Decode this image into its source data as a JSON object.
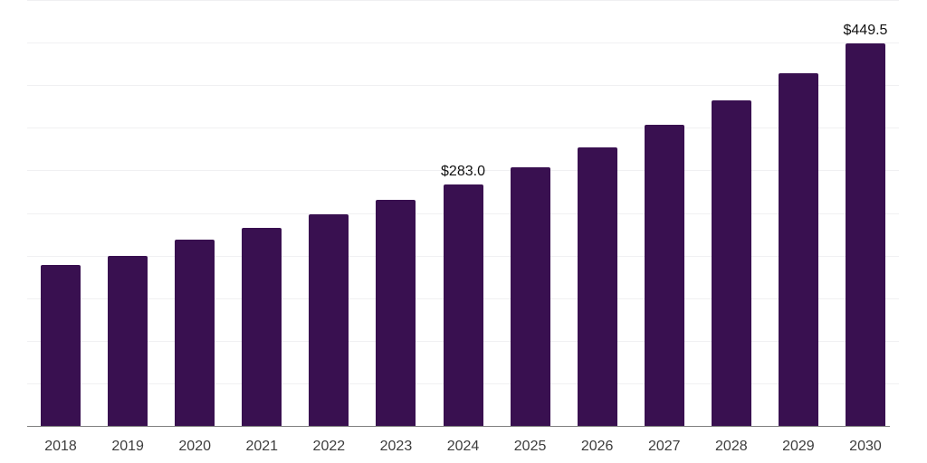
{
  "chart_data": {
    "type": "bar",
    "title": "",
    "xlabel": "",
    "ylabel": "",
    "categories": [
      "2018",
      "2019",
      "2020",
      "2021",
      "2022",
      "2023",
      "2024",
      "2025",
      "2026",
      "2027",
      "2028",
      "2029",
      "2030"
    ],
    "values": [
      189,
      200,
      219,
      233,
      248,
      265,
      283.0,
      304,
      327,
      353,
      382,
      414,
      449.5
    ],
    "bar_labels": [
      "",
      "",
      "",
      "",
      "",
      "",
      "$283.0",
      "",
      "",
      "",
      "",
      "",
      "$449.5"
    ],
    "ylim": [
      0,
      500
    ],
    "grid_step": 50,
    "grid": "horizontal",
    "legend": "none",
    "y_tick_labels": "none",
    "colors": {
      "bar": "#391050",
      "grid_line": "#f0f0f2",
      "axis_line": "#7f7f7f",
      "tick_label": "#3d3d3d",
      "data_label": "#111111",
      "background": "#ffffff"
    }
  }
}
